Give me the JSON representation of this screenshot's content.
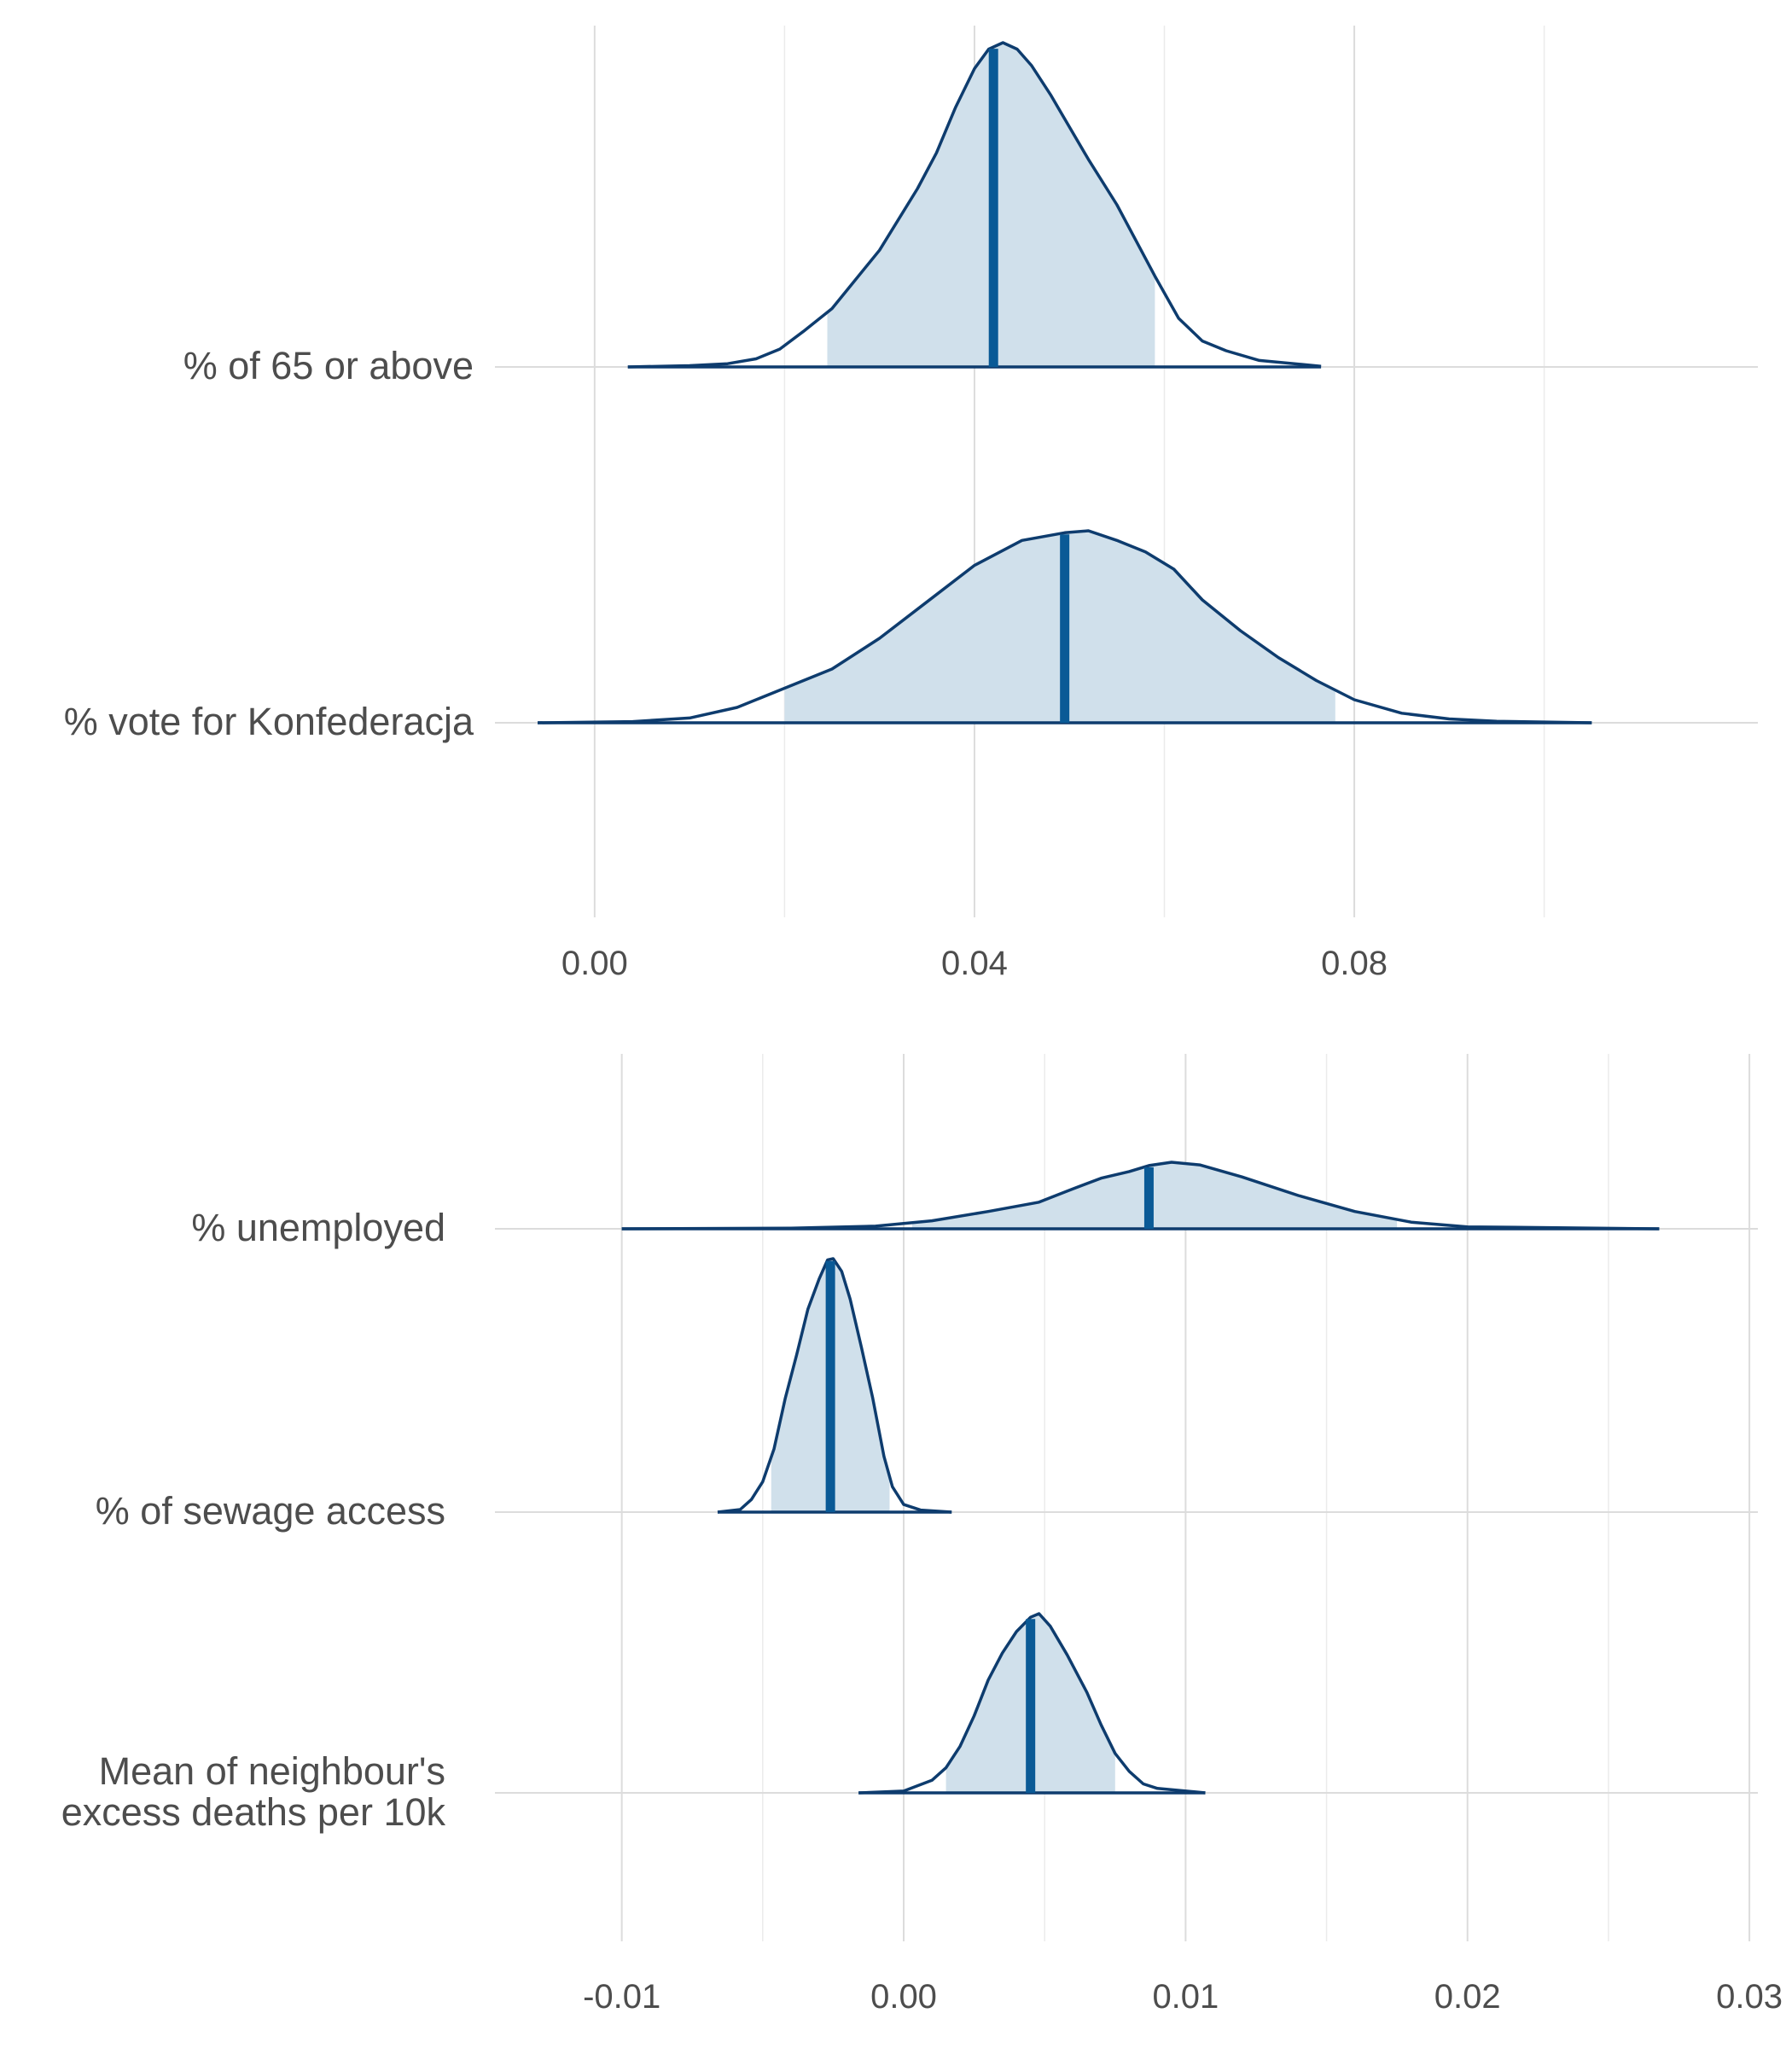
{
  "chart_data": [
    {
      "type": "area",
      "xlabel": "",
      "ylabel": "",
      "xlim": [
        -0.0105,
        0.1225
      ],
      "x_ticks": [
        {
          "value": 0.0,
          "label": "0.00"
        },
        {
          "value": 0.04,
          "label": "0.04"
        },
        {
          "value": 0.08,
          "label": "0.08"
        }
      ],
      "minor_ticks": [
        0.02,
        0.06,
        0.1
      ],
      "grid": true,
      "colors": {
        "fill": "#d0e0eb",
        "outline": "#0e3c6e",
        "median": "#0a5a96"
      },
      "series": [
        {
          "name": "% of 65 or above",
          "min": 0.0035,
          "max": 0.0765,
          "interval": [
            0.0245,
            0.059
          ],
          "median": 0.042,
          "density": [
            [
              0.0035,
              0
            ],
            [
              0.01,
              0.004
            ],
            [
              0.014,
              0.01
            ],
            [
              0.017,
              0.025
            ],
            [
              0.0195,
              0.055
            ],
            [
              0.022,
              0.11
            ],
            [
              0.025,
              0.18
            ],
            [
              0.03,
              0.36
            ],
            [
              0.034,
              0.55
            ],
            [
              0.036,
              0.66
            ],
            [
              0.038,
              0.8
            ],
            [
              0.04,
              0.92
            ],
            [
              0.0415,
              0.98
            ],
            [
              0.043,
              1.0
            ],
            [
              0.0445,
              0.98
            ],
            [
              0.046,
              0.93
            ],
            [
              0.048,
              0.84
            ],
            [
              0.05,
              0.74
            ],
            [
              0.052,
              0.64
            ],
            [
              0.055,
              0.5
            ],
            [
              0.059,
              0.28
            ],
            [
              0.0615,
              0.15
            ],
            [
              0.064,
              0.08
            ],
            [
              0.0665,
              0.05
            ],
            [
              0.07,
              0.02
            ],
            [
              0.0765,
              0.002
            ]
          ]
        },
        {
          "name": "% vote for Konfederacja",
          "min": -0.006,
          "max": 0.105,
          "interval": [
            0.02,
            0.078
          ],
          "median": 0.0495,
          "density": [
            [
              -0.006,
              0
            ],
            [
              0.004,
              0.006
            ],
            [
              0.01,
              0.025
            ],
            [
              0.015,
              0.08
            ],
            [
              0.02,
              0.18
            ],
            [
              0.025,
              0.28
            ],
            [
              0.03,
              0.44
            ],
            [
              0.035,
              0.63
            ],
            [
              0.04,
              0.82
            ],
            [
              0.045,
              0.95
            ],
            [
              0.0495,
              0.99
            ],
            [
              0.052,
              1.0
            ],
            [
              0.055,
              0.95
            ],
            [
              0.058,
              0.89
            ],
            [
              0.061,
              0.8
            ],
            [
              0.064,
              0.64
            ],
            [
              0.068,
              0.48
            ],
            [
              0.072,
              0.34
            ],
            [
              0.076,
              0.22
            ],
            [
              0.08,
              0.12
            ],
            [
              0.085,
              0.05
            ],
            [
              0.09,
              0.02
            ],
            [
              0.095,
              0.008
            ],
            [
              0.105,
              0
            ]
          ]
        }
      ]
    },
    {
      "type": "area",
      "xlabel": "",
      "ylabel": "",
      "xlim": [
        -0.0145,
        0.0303
      ],
      "x_ticks": [
        {
          "value": -0.01,
          "label": "-0.01"
        },
        {
          "value": 0.0,
          "label": "0.00"
        },
        {
          "value": 0.01,
          "label": "0.01"
        },
        {
          "value": 0.02,
          "label": "0.02"
        },
        {
          "value": 0.03,
          "label": "0.03"
        }
      ],
      "minor_ticks": [
        -0.005,
        0.005,
        0.015,
        0.025
      ],
      "grid": true,
      "colors": {
        "fill": "#d0e0eb",
        "outline": "#0e3c6e",
        "median": "#0a5a96"
      },
      "series": [
        {
          "name": "% unemployed",
          "min": -0.01,
          "max": 0.0268,
          "interval": [
            0.0003,
            0.0175
          ],
          "median": 0.0087,
          "density": [
            [
              -0.01,
              0
            ],
            [
              -0.004,
              0.01
            ],
            [
              -0.001,
              0.04
            ],
            [
              0.001,
              0.12
            ],
            [
              0.003,
              0.26
            ],
            [
              0.0048,
              0.4
            ],
            [
              0.006,
              0.6
            ],
            [
              0.007,
              0.76
            ],
            [
              0.008,
              0.86
            ],
            [
              0.0087,
              0.95
            ],
            [
              0.0095,
              1.0
            ],
            [
              0.0105,
              0.96
            ],
            [
              0.012,
              0.78
            ],
            [
              0.014,
              0.5
            ],
            [
              0.016,
              0.26
            ],
            [
              0.018,
              0.1
            ],
            [
              0.02,
              0.03
            ],
            [
              0.0268,
              0
            ]
          ]
        },
        {
          "name": "% of sewage access",
          "min": -0.0066,
          "max": 0.0017,
          "interval": [
            -0.0047,
            -0.0005
          ],
          "median": -0.0026,
          "density": [
            [
              -0.0066,
              0
            ],
            [
              -0.0058,
              0.01
            ],
            [
              -0.0054,
              0.05
            ],
            [
              -0.005,
              0.12
            ],
            [
              -0.0046,
              0.25
            ],
            [
              -0.0042,
              0.45
            ],
            [
              -0.0038,
              0.62
            ],
            [
              -0.0034,
              0.8
            ],
            [
              -0.003,
              0.92
            ],
            [
              -0.0027,
              0.995
            ],
            [
              -0.0025,
              1.0
            ],
            [
              -0.0022,
              0.95
            ],
            [
              -0.0019,
              0.84
            ],
            [
              -0.0015,
              0.65
            ],
            [
              -0.0011,
              0.45
            ],
            [
              -0.0007,
              0.22
            ],
            [
              -0.0004,
              0.1
            ],
            [
              0.0,
              0.03
            ],
            [
              0.0006,
              0.008
            ],
            [
              0.0017,
              0
            ]
          ]
        },
        {
          "name": "Mean of neighbour's\nexcess deaths per 10k",
          "min": -0.0016,
          "max": 0.0107,
          "interval": [
            0.0015,
            0.0075
          ],
          "median": 0.0045,
          "density": [
            [
              -0.0016,
              0
            ],
            [
              0.0,
              0.01
            ],
            [
              0.001,
              0.07
            ],
            [
              0.0015,
              0.14
            ],
            [
              0.002,
              0.26
            ],
            [
              0.0025,
              0.43
            ],
            [
              0.003,
              0.63
            ],
            [
              0.0035,
              0.78
            ],
            [
              0.004,
              0.9
            ],
            [
              0.0045,
              0.98
            ],
            [
              0.0048,
              1.0
            ],
            [
              0.0052,
              0.93
            ],
            [
              0.0058,
              0.77
            ],
            [
              0.0065,
              0.56
            ],
            [
              0.007,
              0.38
            ],
            [
              0.0075,
              0.22
            ],
            [
              0.008,
              0.12
            ],
            [
              0.0085,
              0.05
            ],
            [
              0.009,
              0.025
            ],
            [
              0.0107,
              0
            ]
          ]
        }
      ]
    }
  ]
}
